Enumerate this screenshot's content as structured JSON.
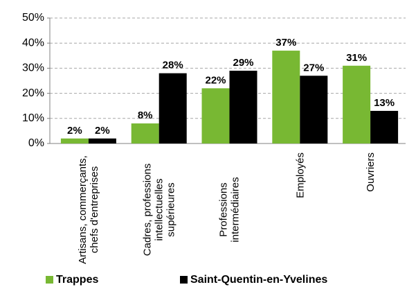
{
  "chart_data": {
    "type": "bar",
    "categories": [
      "Artisans, commerçants, chefs d'entreprises",
      "Cadres, professions intellectuelles supérieures",
      "Professions intermédiaires",
      "Employés",
      "Ouvriers"
    ],
    "series": [
      {
        "name": "Trappes",
        "color": "#78b833",
        "values": [
          2,
          8,
          22,
          37,
          31
        ],
        "value_labels": [
          "2%",
          "8%",
          "22%",
          "37%",
          "31%"
        ]
      },
      {
        "name": "Saint-Quentin-en-Yvelines",
        "color": "#000000",
        "values": [
          2,
          28,
          29,
          27,
          13
        ],
        "value_labels": [
          "2%",
          "28%",
          "29%",
          "27%",
          "13%"
        ]
      }
    ],
    "ylim": [
      0,
      50
    ],
    "yticks": [
      {
        "value": 0,
        "label": "0%"
      },
      {
        "value": 10,
        "label": "10%"
      },
      {
        "value": 20,
        "label": "20%"
      },
      {
        "value": 30,
        "label": "30%"
      },
      {
        "value": 40,
        "label": "40%"
      },
      {
        "value": 50,
        "label": "50%"
      }
    ],
    "grid": true,
    "legend": "bottom"
  }
}
